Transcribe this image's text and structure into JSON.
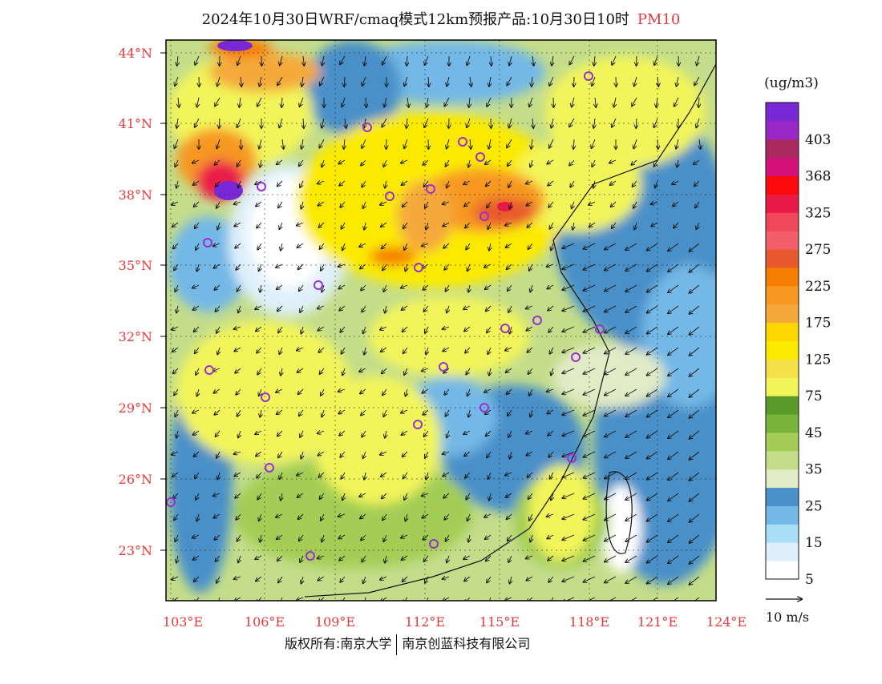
{
  "title": {
    "main": "2024年10月30日WRF/cmaq模式12km预报产品:10月30日10时",
    "pollutant": "PM10"
  },
  "colors": {
    "axis_label": "#e63a3a",
    "station": "#9b30d0"
  },
  "map": {
    "lat_ticks": [
      "44°N",
      "41°N",
      "38°N",
      "35°N",
      "32°N",
      "29°N",
      "26°N",
      "23°N"
    ],
    "lon_ticks": [
      "103°E",
      "106°E",
      "109°E",
      "112°E",
      "115°E",
      "118°E",
      "121°E",
      "124°E"
    ]
  },
  "legend": {
    "unit": "(ug/m3)",
    "levels": [
      {
        "color": "#ffffff",
        "label": "5"
      },
      {
        "color": "#dff0fb",
        "label": ""
      },
      {
        "color": "#abdff7",
        "label": "15"
      },
      {
        "color": "#73b8e6",
        "label": ""
      },
      {
        "color": "#4a90c9",
        "label": "25"
      },
      {
        "color": "#e1ebc6",
        "label": ""
      },
      {
        "color": "#c4dd8a",
        "label": "35"
      },
      {
        "color": "#a3cd55",
        "label": ""
      },
      {
        "color": "#78b33a",
        "label": "45"
      },
      {
        "color": "#5a9a2a",
        "label": ""
      },
      {
        "color": "#f2f55a",
        "label": "75"
      },
      {
        "color": "#f6e04a",
        "label": ""
      },
      {
        "color": "#fbea00",
        "label": "125"
      },
      {
        "color": "#fcd700",
        "label": ""
      },
      {
        "color": "#f5a93a",
        "label": "175"
      },
      {
        "color": "#f79820",
        "label": ""
      },
      {
        "color": "#f57e00",
        "label": "225"
      },
      {
        "color": "#e85a2d",
        "label": ""
      },
      {
        "color": "#f25f6a",
        "label": "275"
      },
      {
        "color": "#f0485a",
        "label": ""
      },
      {
        "color": "#ea1a48",
        "label": "325"
      },
      {
        "color": "#fa0a0a",
        "label": ""
      },
      {
        "color": "#d4107a",
        "label": "368"
      },
      {
        "color": "#a82a60",
        "label": ""
      },
      {
        "color": "#9a27c8",
        "label": "403"
      },
      {
        "color": "#7a28d6",
        "label": ""
      }
    ]
  },
  "wind_scale": {
    "label": "10 m/s"
  },
  "footer": {
    "left": "版权所有:南京大学",
    "right": "南京创蓝科技有限公司"
  }
}
